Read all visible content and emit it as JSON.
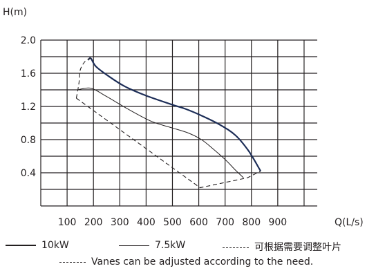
{
  "chart_data": {
    "type": "line",
    "ylabel": "H(m)",
    "xlabel": "Q(L/s)",
    "xticks": [
      100,
      200,
      300,
      400,
      500,
      600,
      700,
      800,
      900
    ],
    "yticks": [
      0.4,
      0.8,
      1.2,
      1.6,
      2.0
    ],
    "ytick_labels": [
      "0.4",
      "0.8",
      "1.2",
      "1.6",
      "2.0"
    ],
    "xlim": [
      0,
      1050
    ],
    "ylim": [
      0,
      2.0
    ],
    "grid": true,
    "series": [
      {
        "name": "10kW",
        "style": "thick",
        "points": [
          [
            180,
            1.76
          ],
          [
            190,
            1.78
          ],
          [
            210,
            1.68
          ],
          [
            260,
            1.56
          ],
          [
            320,
            1.44
          ],
          [
            400,
            1.33
          ],
          [
            500,
            1.22
          ],
          [
            550,
            1.17
          ],
          [
            610,
            1.09
          ],
          [
            680,
            0.98
          ],
          [
            740,
            0.85
          ],
          [
            790,
            0.66
          ],
          [
            835,
            0.42
          ]
        ]
      },
      {
        "name": "7.5kW",
        "style": "thin",
        "points": [
          [
            140,
            1.4
          ],
          [
            190,
            1.42
          ],
          [
            250,
            1.32
          ],
          [
            330,
            1.17
          ],
          [
            420,
            1.02
          ],
          [
            500,
            0.94
          ],
          [
            560,
            0.88
          ],
          [
            610,
            0.8
          ],
          [
            650,
            0.7
          ],
          [
            700,
            0.56
          ],
          [
            740,
            0.43
          ],
          [
            770,
            0.34
          ]
        ]
      },
      {
        "name": "可根据需要调整叶片",
        "style": "dashed",
        "points": [
          [
            135,
            1.3
          ],
          [
            145,
            1.48
          ],
          [
            150,
            1.64
          ],
          [
            170,
            1.75
          ],
          [
            190,
            1.78
          ]
        ]
      },
      {
        "name": "可根据需要调整叶片",
        "style": "dashed",
        "points": [
          [
            135,
            1.3
          ],
          [
            605,
            0.22
          ],
          [
            785,
            0.34
          ],
          [
            835,
            0.42
          ]
        ]
      }
    ],
    "legend": [
      "10kW",
      "7.5kW",
      "可根据需要调整叶片"
    ],
    "note": "Vanes can be adjusted according to the need."
  }
}
